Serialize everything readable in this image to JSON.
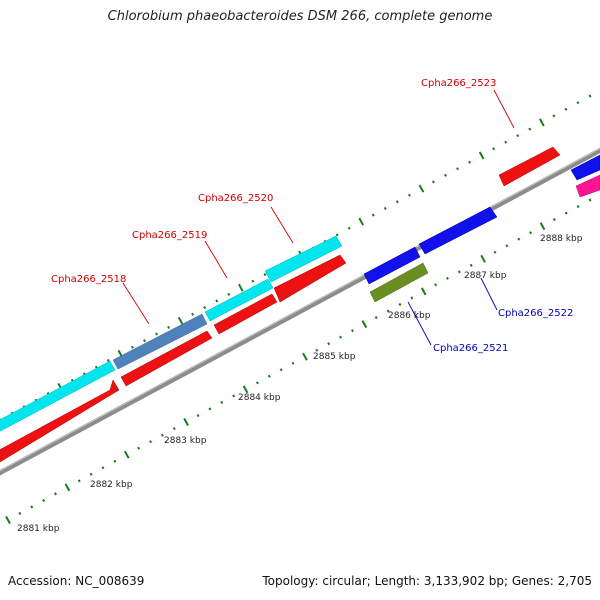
{
  "title": "Chlorobium phaeobacteroides DSM 266, complete genome",
  "footer": {
    "accession": "Accession: NC_008639",
    "summary": "Topology: circular; Length: 3,133,902 bp; Genes: 2,705"
  },
  "colors": {
    "backbone": "#8c8c8c",
    "ticks": "#1a7a1a",
    "label_red": "#cc0000",
    "label_blue": "#0000bb"
  },
  "kbp_labels": [
    "2881 kbp",
    "2882 kbp",
    "2883 kbp",
    "2884 kbp",
    "2885 kbp",
    "2886 kbp",
    "2887 kbp",
    "2888 kbp"
  ],
  "genes": [
    {
      "id": "cyan-1",
      "color": "#00e5ee"
    },
    {
      "id": "steelblue",
      "color": "#4f81bd"
    },
    {
      "id": "cyan-2",
      "color": "#00e5ee"
    },
    {
      "id": "cyan-3",
      "color": "#00e5ee"
    },
    {
      "id": "red-1",
      "color": "#ee1111"
    },
    {
      "id": "red-2",
      "color": "#ee1111"
    },
    {
      "id": "red-3",
      "color": "#ee1111"
    },
    {
      "id": "red-4",
      "color": "#ee1111"
    },
    {
      "id": "blue-1",
      "color": "#1111ee"
    },
    {
      "id": "blue-2",
      "color": "#1111ee"
    },
    {
      "id": "olive",
      "color": "#6b8e23"
    },
    {
      "id": "red-5",
      "color": "#ee1111"
    },
    {
      "id": "blue-3",
      "color": "#1111ee"
    },
    {
      "id": "magenta",
      "color": "#ff1493"
    }
  ],
  "gene_labels": [
    {
      "text": "Cpha266_2518",
      "color": "#cc0000"
    },
    {
      "text": "Cpha266_2519",
      "color": "#cc0000"
    },
    {
      "text": "Cpha266_2520",
      "color": "#cc0000"
    },
    {
      "text": "Cpha266_2521",
      "color": "#0000bb"
    },
    {
      "text": "Cpha266_2522",
      "color": "#0000bb"
    },
    {
      "text": "Cpha266_2523",
      "color": "#cc0000"
    }
  ]
}
